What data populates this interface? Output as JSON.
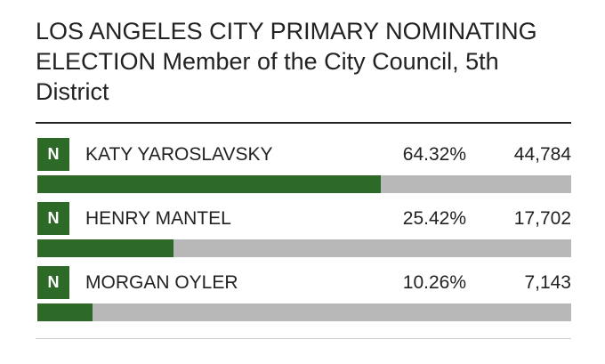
{
  "title": "LOS ANGELES CITY PRIMARY NOMINATING ELECTION Member of the City Council, 5th District",
  "candidates": [
    {
      "badge": "N",
      "name": "KATY YAROSLAVSKY",
      "percent": {
        "value": 64.32,
        "label": "64.32%"
      },
      "votes": "44,784"
    },
    {
      "badge": "N",
      "name": "HENRY MANTEL",
      "percent": {
        "value": 25.42,
        "label": "25.42%"
      },
      "votes": "17,702"
    },
    {
      "badge": "N",
      "name": "MORGAN OYLER",
      "percent": {
        "value": 10.26,
        "label": "10.26%"
      },
      "votes": "7,143"
    }
  ]
}
